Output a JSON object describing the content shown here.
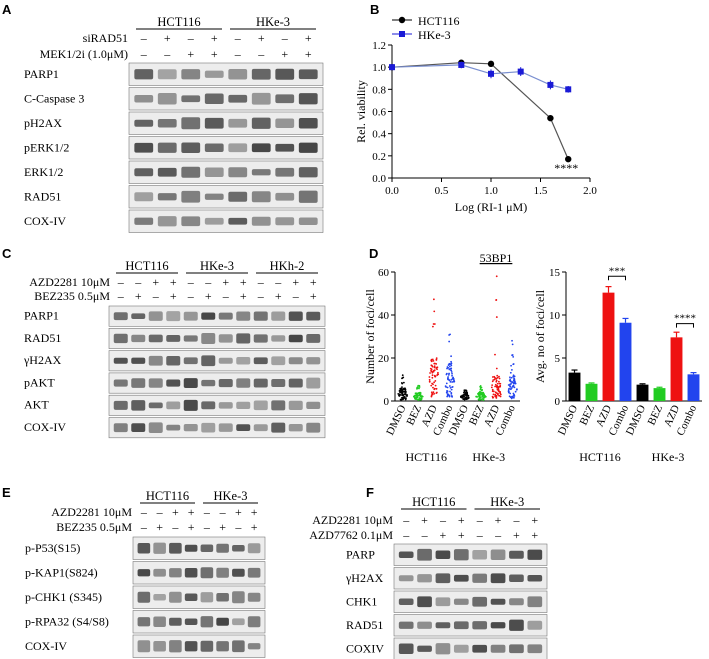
{
  "panels": {
    "A": {
      "letter": "A",
      "groups": [
        "HCT116",
        "HKe-3"
      ],
      "treatments": [
        {
          "label": "siRAD51",
          "signs": [
            "–",
            "+",
            "–",
            "+",
            "–",
            "+",
            "–",
            "+"
          ]
        },
        {
          "label": "MEK1/2i (1.0μM)",
          "signs": [
            "–",
            "–",
            "+",
            "+",
            "–",
            "–",
            "+",
            "+"
          ]
        }
      ],
      "blots": [
        "PARP1",
        "C-Caspase 3",
        "pH2AX",
        "pERK1/2",
        "ERK1/2",
        "RAD51",
        "COX-IV"
      ]
    },
    "B": {
      "letter": "B",
      "legend": [
        "HCT116",
        "HKe-3"
      ],
      "significance": "****"
    },
    "C": {
      "letter": "C",
      "groups": [
        "HCT116",
        "HKe-3",
        "HKh-2"
      ],
      "treatments": [
        {
          "label": "AZD2281 10μM",
          "signs": [
            "–",
            "–",
            "+",
            "+",
            "–",
            "–",
            "+",
            "+",
            "–",
            "–",
            "+",
            "+"
          ]
        },
        {
          "label": "BEZ235 0.5μM",
          "signs": [
            "–",
            "+",
            "–",
            "+",
            "–",
            "+",
            "–",
            "+",
            "–",
            "+",
            "–",
            "+"
          ]
        }
      ],
      "blots": [
        "PARP1",
        "RAD51",
        "γH2AX",
        "pAKT",
        "AKT",
        "COX-IV"
      ]
    },
    "D": {
      "letter": "D",
      "title": "53BP1",
      "left_ylabel": "Number of foci/cell",
      "right_ylabel": "Avg. no of foci/cell",
      "groups": [
        "HCT116",
        "HKe-3"
      ],
      "sig_left": "***",
      "sig_right": "****"
    },
    "E": {
      "letter": "E",
      "groups": [
        "HCT116",
        "HKe-3"
      ],
      "treatments": [
        {
          "label": "AZD2281 10μM",
          "signs": [
            "–",
            "–",
            "+",
            "+",
            "–",
            "–",
            "+",
            "+"
          ]
        },
        {
          "label": "BEZ235 0.5μM",
          "signs": [
            "–",
            "+",
            "–",
            "+",
            "–",
            "+",
            "–",
            "+"
          ]
        }
      ],
      "blots": [
        "p-P53(S15)",
        "p-KAP1(S824)",
        "p-CHK1 (S345)",
        "p-RPA32 (S4/S8)",
        "COX-IV"
      ]
    },
    "F": {
      "letter": "F",
      "groups": [
        "HCT116",
        "HKe-3"
      ],
      "treatments": [
        {
          "label": "AZD2281 10μM",
          "signs": [
            "–",
            "+",
            "–",
            "+",
            "–",
            "+",
            "–",
            "+"
          ]
        },
        {
          "label": "AZD7762 0.1μM",
          "signs": [
            "–",
            "–",
            "+",
            "+",
            "–",
            "–",
            "+",
            "+"
          ]
        }
      ],
      "blots": [
        "PARP",
        "γH2AX",
        "CHK1",
        "RAD51",
        "COXIV"
      ]
    }
  },
  "chart_data": [
    {
      "type": "line",
      "panel": "B",
      "xlabel": "Log (RI-1 μM)",
      "ylabel": "Rel. viability",
      "xlim": [
        0.0,
        2.0
      ],
      "ylim": [
        0.0,
        1.2
      ],
      "xticks": [
        "0.0",
        "0.5",
        "1.0",
        "1.5",
        "2.0"
      ],
      "yticks": [
        "0.0",
        "0.2",
        "0.4",
        "0.6",
        "0.8",
        "1.0",
        "1.2"
      ],
      "series": [
        {
          "name": "HCT116",
          "color": "#000000",
          "marker": "circle",
          "x": [
            0.0,
            0.7,
            1.0,
            1.6,
            1.78
          ],
          "y": [
            1.0,
            1.04,
            1.03,
            0.54,
            0.17
          ],
          "err": [
            0.02,
            0.02,
            0.02,
            0.02,
            0.01
          ]
        },
        {
          "name": "HKe-3",
          "color": "#1a1ad6",
          "marker": "square",
          "x": [
            0.0,
            0.7,
            1.0,
            1.3,
            1.6,
            1.78
          ],
          "y": [
            1.0,
            1.02,
            0.94,
            0.96,
            0.84,
            0.8
          ],
          "err": [
            0.02,
            0.03,
            0.04,
            0.04,
            0.04,
            0.03
          ]
        }
      ]
    },
    {
      "type": "scatter",
      "panel": "D-left",
      "ylabel": "Number of foci/cell",
      "ylim": [
        0,
        60
      ],
      "yticks": [
        "0",
        "20",
        "40",
        "60"
      ],
      "categories": [
        "DMSO",
        "BEZ",
        "AZD",
        "Combo",
        "DMSO",
        "BEZ",
        "AZD",
        "Combo"
      ],
      "colors": [
        "#000000",
        "#22cc22",
        "#ee1111",
        "#2244ee",
        "#000000",
        "#22cc22",
        "#ee1111",
        "#2244ee"
      ],
      "max_values": [
        12,
        9,
        50,
        31,
        5,
        7,
        58,
        28
      ],
      "median_values": [
        3,
        2,
        10,
        9,
        2,
        2,
        6,
        6
      ]
    },
    {
      "type": "bar",
      "panel": "D-right",
      "ylabel": "Avg. no of foci/cell",
      "ylim": [
        0,
        15
      ],
      "yticks": [
        "0",
        "5",
        "10",
        "15"
      ],
      "categories": [
        "DMSO",
        "BEZ",
        "AZD",
        "Combo",
        "DMSO",
        "BEZ",
        "AZD",
        "Combo"
      ],
      "colors": [
        "#000000",
        "#22cc22",
        "#ee1111",
        "#2244ee",
        "#000000",
        "#22cc22",
        "#ee1111",
        "#2244ee"
      ],
      "values": [
        3.3,
        2.0,
        12.6,
        9.1,
        1.9,
        1.5,
        7.4,
        3.1
      ],
      "err": [
        0.3,
        0.1,
        0.7,
        0.5,
        0.1,
        0.1,
        0.6,
        0.2
      ]
    }
  ]
}
